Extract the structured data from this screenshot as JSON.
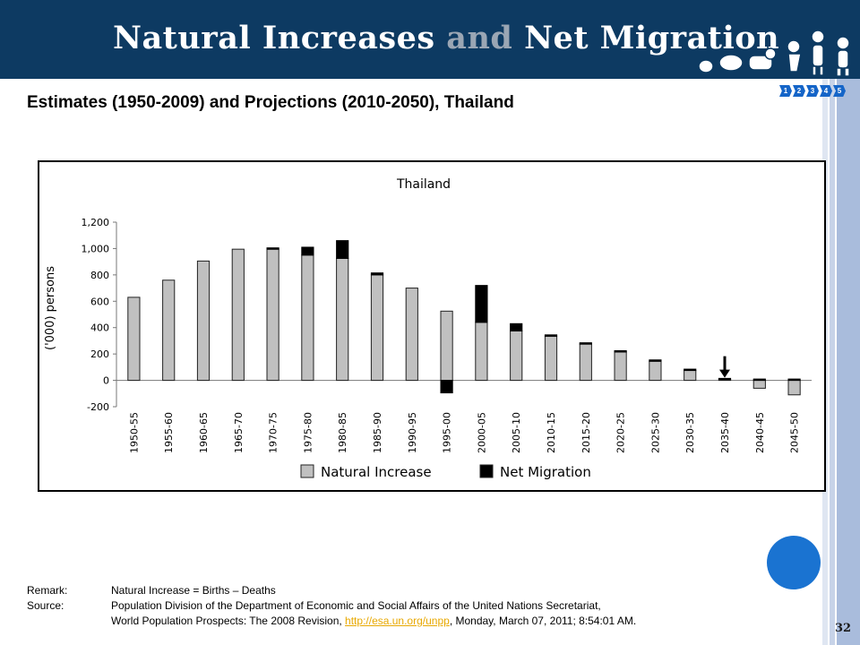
{
  "slide": {
    "title_part1": "Natural Increases",
    "title_and": "and",
    "title_part2": "Net Migration",
    "subtitle": "Estimates (1950-2009) and Projections (2010-2050),  Thailand",
    "steps": [
      "1",
      "2",
      "3",
      "4",
      "5"
    ],
    "page_number": "32"
  },
  "remark": {
    "remark_label": "Remark:",
    "remark_text": "Natural Increase = Births – Deaths",
    "source_label": "Source:",
    "source_line1": "Population Division of the Department of Economic and Social Affairs of the United Nations Secretariat,",
    "source_line2_prefix": "World Population Prospects: The 2008 Revision, ",
    "source_link": "http://esa.un.org/unpp",
    "source_line2_suffix": ",  Monday, March 07, 2011; 8:54:01 AM."
  },
  "chart_data": {
    "type": "bar",
    "title": "Thailand",
    "ylabel": "('000) persons",
    "xlabel": "",
    "ylim": [
      -200,
      1200
    ],
    "yticks": [
      -200,
      0,
      200,
      400,
      600,
      800,
      1000,
      1200
    ],
    "ytick_labels": [
      "-200",
      "0",
      "200",
      "400",
      "600",
      "800",
      "1,000",
      "1,200"
    ],
    "grid": false,
    "legend_position": "bottom",
    "stacked": true,
    "categories": [
      "1950-55",
      "1955-60",
      "1960-65",
      "1965-70",
      "1970-75",
      "1975-80",
      "1980-85",
      "1985-90",
      "1990-95",
      "1995-00",
      "2000-05",
      "2005-10",
      "2010-15",
      "2015-20",
      "2020-25",
      "2025-30",
      "2030-35",
      "2035-40",
      "2040-45",
      "2045-50"
    ],
    "series": [
      {
        "name": "Natural Increase",
        "color": "#c0c0c0",
        "values": [
          630,
          760,
          905,
          995,
          995,
          950,
          925,
          800,
          700,
          525,
          440,
          375,
          335,
          275,
          215,
          145,
          75,
          5,
          -60,
          -110
        ]
      },
      {
        "name": "Net Migration",
        "color": "#000000",
        "values": [
          0,
          0,
          0,
          0,
          10,
          60,
          135,
          15,
          0,
          -95,
          280,
          55,
          10,
          10,
          10,
          10,
          10,
          10,
          10,
          10
        ]
      }
    ],
    "annotations": [
      {
        "type": "arrow",
        "category": "2035-40",
        "direction": "down"
      }
    ]
  }
}
